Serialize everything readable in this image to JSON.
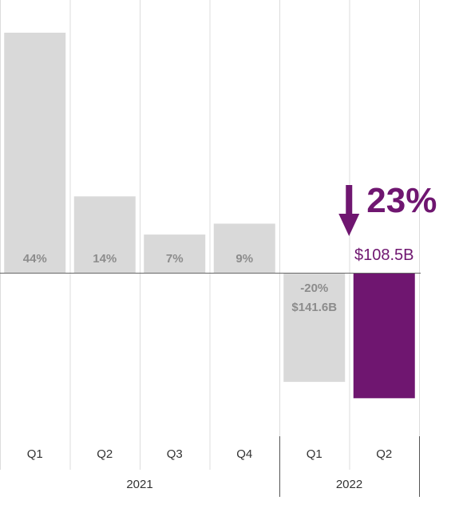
{
  "chart_data": {
    "type": "bar",
    "categories": [
      "Q1",
      "Q2",
      "Q3",
      "Q4",
      "Q1",
      "Q2"
    ],
    "groups": [
      {
        "label": "2021",
        "count": 4
      },
      {
        "label": "2022",
        "count": 2
      }
    ],
    "values": [
      44,
      14,
      7,
      9,
      -20,
      -23
    ],
    "data_labels": [
      "44%",
      "14%",
      "7%",
      "9%",
      "-20%",
      ""
    ],
    "sub_labels": [
      "",
      "",
      "",
      "",
      "$141.6B",
      "$108.5B"
    ],
    "highlight": {
      "index": 5,
      "percent_label": "23%",
      "value_label": "$108.5B",
      "direction": "down"
    },
    "colors": {
      "default": "#d9d9d9",
      "highlight": "#6f1670",
      "label": "#8c8c8c"
    },
    "ylim": [
      -29,
      44
    ],
    "grid": true,
    "title": "",
    "xlabel": "",
    "ylabel": ""
  }
}
